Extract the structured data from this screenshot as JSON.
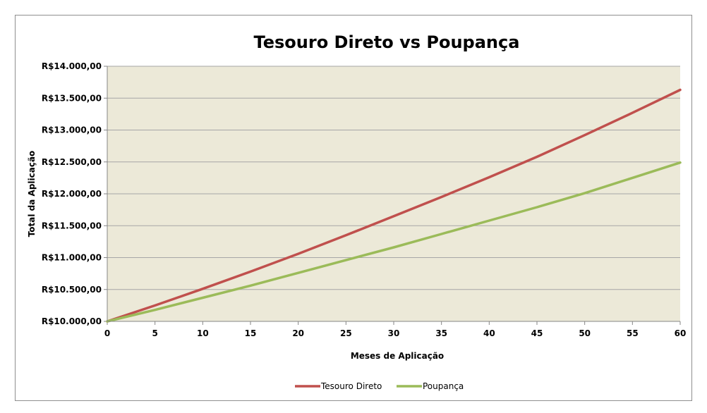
{
  "chart_data": {
    "type": "line",
    "title": "Tesouro Direto vs Poupança",
    "xlabel": "Meses de Aplicação",
    "ylabel": "Total da Aplicação",
    "xlim": [
      0,
      60
    ],
    "ylim": [
      10000,
      14000
    ],
    "x_ticks": [
      "0",
      "5",
      "10",
      "15",
      "20",
      "25",
      "30",
      "35",
      "40",
      "45",
      "50",
      "55",
      "60"
    ],
    "y_ticks": [
      "R$10.000,00",
      "R$10.500,00",
      "R$11.000,00",
      "R$11.500,00",
      "R$12.000,00",
      "R$12.500,00",
      "R$13.000,00",
      "R$13.500,00",
      "R$14.000,00"
    ],
    "grid": true,
    "legend_position": "bottom",
    "plot_background": "#ece9d8",
    "x": [
      0,
      5,
      10,
      15,
      20,
      25,
      30,
      35,
      40,
      45,
      50,
      55,
      60
    ],
    "series": [
      {
        "name": "Tesouro Direto",
        "color": "#c0504d",
        "values": [
          10000,
          10250,
          10510,
          10780,
          11060,
          11350,
          11650,
          11950,
          12260,
          12580,
          12920,
          13270,
          13630
        ]
      },
      {
        "name": "Poupança",
        "color": "#9bbb59",
        "values": [
          10000,
          10180,
          10370,
          10560,
          10760,
          10960,
          11160,
          11370,
          11580,
          11790,
          12010,
          12250,
          12490
        ]
      }
    ]
  }
}
